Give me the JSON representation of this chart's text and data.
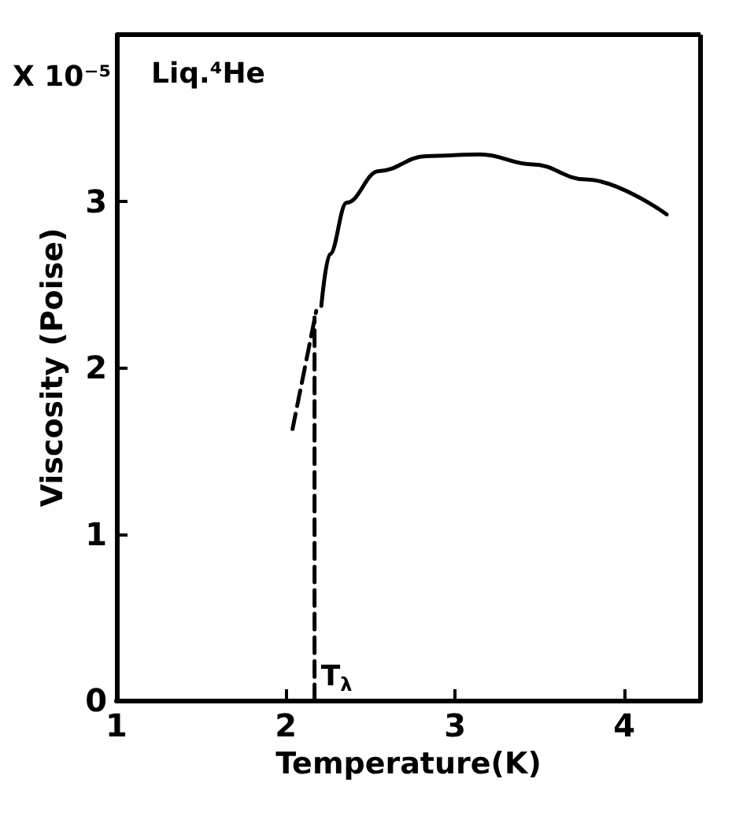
{
  "chart_data": {
    "type": "line",
    "xlabel": "Temperature(K)",
    "ylabel": "Viscosity (Poise)",
    "annotations": [
      "Liq.⁴He",
      "X 10⁻⁵",
      {
        "text": "T$_{λ}$",
        "x": 2.17,
        "y": 0
      }
    ],
    "series": [
      {
        "color": "#000000",
        "x": [
          2.21,
          2.26,
          2.36,
          2.55,
          2.83,
          3.15,
          3.46,
          3.77,
          4.25
        ],
        "values": [
          2.37,
          2.68,
          2.99,
          3.18,
          3.27,
          3.28,
          3.22,
          3.13,
          2.92
        ]
      },
      {
        "color": "#000000",
        "line_style": "dashed",
        "x": [
          2.04,
          2.18
        ],
        "values": [
          1.63,
          2.34
        ]
      },
      {
        "color": "#000000",
        "line_style": "dashed",
        "x": [
          2.17,
          2.17
        ],
        "values": [
          0,
          2.3
        ]
      }
    ],
    "xlim": [
      1,
      4.45
    ],
    "xticks": [
      1,
      2,
      3,
      4
    ],
    "ylim": [
      0,
      4.0
    ],
    "yticks": [
      0,
      1,
      2,
      3
    ],
    "grid": false,
    "marker": "none",
    "line_style": "solid"
  }
}
